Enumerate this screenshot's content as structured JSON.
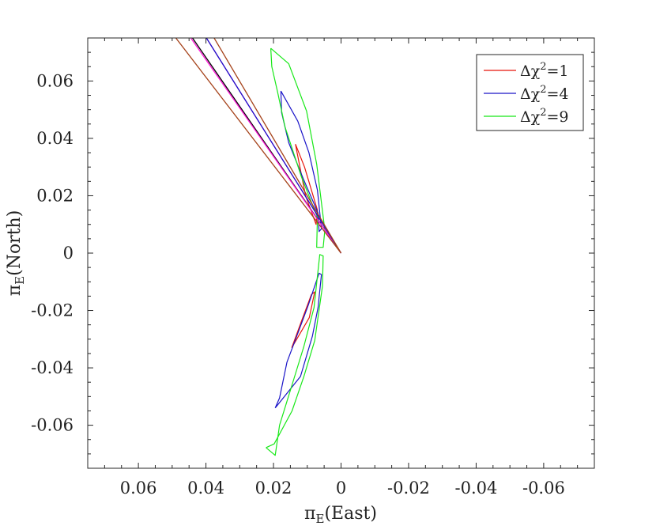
{
  "chart_data": {
    "type": "line",
    "xlabel": {
      "main": "π",
      "sub": "E",
      "paren": "(East)"
    },
    "ylabel": {
      "main": "π",
      "sub": "E",
      "paren": "(North)"
    },
    "xlim": [
      0.075,
      -0.075
    ],
    "ylim": [
      -0.075,
      0.075
    ],
    "x_ticks": [
      0.06,
      0.04,
      0.02,
      0,
      -0.02,
      -0.04,
      -0.06
    ],
    "x_tick_labels": [
      "0.06",
      "0.04",
      "0.02",
      "0",
      "-0.02",
      "-0.04",
      "-0.06"
    ],
    "y_ticks": [
      0.06,
      0.04,
      0.02,
      0,
      -0.02,
      -0.04,
      -0.06
    ],
    "y_tick_labels": [
      "0.06",
      "0.04",
      "0.02",
      "0",
      "-0.02",
      "-0.04",
      "-0.06"
    ],
    "x_minor_step": 0.005,
    "y_minor_step": 0.005,
    "grid": false,
    "legend_position": "top-right",
    "series": [
      {
        "name": "Δχ²=1",
        "legend": {
          "prefix": "Δχ",
          "sup": "2",
          "suffix": "=1"
        },
        "color": "#e8150b",
        "kind": "contour",
        "contours": [
          [
            [
              0.0135,
              0.038
            ],
            [
              0.0108,
              0.03
            ],
            [
              0.007,
              0.015
            ],
            [
              0.0074,
              0.01
            ],
            [
              0.0105,
              0.02
            ],
            [
              0.0135,
              0.038
            ]
          ],
          [
            [
              0.0146,
              -0.033
            ],
            [
              0.0118,
              -0.024
            ],
            [
              0.0088,
              -0.0145
            ],
            [
              0.0078,
              -0.0135
            ],
            [
              0.0094,
              -0.0225
            ],
            [
              0.0146,
              -0.033
            ]
          ]
        ]
      },
      {
        "name": "Δχ²=4",
        "legend": {
          "prefix": "Δχ",
          "sup": "2",
          "suffix": "=4"
        },
        "color": "#1a14c8",
        "kind": "contour",
        "contours": [
          [
            [
              0.0178,
              0.0565
            ],
            [
              0.0176,
              0.049
            ],
            [
              0.0155,
              0.0385
            ],
            [
              0.0112,
              0.026
            ],
            [
              0.0068,
              0.014
            ],
            [
              0.0065,
              0.0075
            ],
            [
              0.0058,
              0.0085
            ],
            [
              0.007,
              0.022
            ],
            [
              0.0095,
              0.035
            ],
            [
              0.0128,
              0.046
            ],
            [
              0.0178,
              0.0565
            ]
          ],
          [
            [
              0.0195,
              -0.054
            ],
            [
              0.0182,
              -0.0505
            ],
            [
              0.016,
              -0.038
            ],
            [
              0.0125,
              -0.027
            ],
            [
              0.0098,
              -0.0185
            ],
            [
              0.0065,
              -0.007
            ],
            [
              0.0058,
              -0.0075
            ],
            [
              0.0068,
              -0.019
            ],
            [
              0.0085,
              -0.029
            ],
            [
              0.012,
              -0.043
            ],
            [
              0.0195,
              -0.054
            ]
          ]
        ]
      },
      {
        "name": "Δχ²=9",
        "legend": {
          "prefix": "Δχ",
          "sup": "2",
          "suffix": "=9"
        },
        "color": "#18e818",
        "kind": "contour",
        "contours": [
          [
            [
              0.0208,
              0.0714
            ],
            [
              0.0205,
              0.065
            ],
            [
              0.0188,
              0.0562
            ],
            [
              0.0166,
              0.044
            ],
            [
              0.0117,
              0.0265
            ],
            [
              0.007,
              0.0125
            ],
            [
              0.0072,
              0.002
            ],
            [
              0.0053,
              0.002
            ],
            [
              0.0048,
              0.008
            ],
            [
              0.0072,
              0.031
            ],
            [
              0.0102,
              0.0495
            ],
            [
              0.0155,
              0.066
            ],
            [
              0.0208,
              0.0714
            ]
          ],
          [
            [
              0.0222,
              -0.0678
            ],
            [
              0.0195,
              -0.0705
            ],
            [
              0.0182,
              -0.06
            ],
            [
              0.0148,
              -0.047
            ],
            [
              0.011,
              -0.0325
            ],
            [
              0.008,
              -0.019
            ],
            [
              0.0063,
              -0.0005
            ],
            [
              0.0053,
              -0.001
            ],
            [
              0.0055,
              -0.0115
            ],
            [
              0.0078,
              -0.0305
            ],
            [
              0.011,
              -0.043
            ],
            [
              0.0145,
              -0.055
            ],
            [
              0.0198,
              -0.0665
            ],
            [
              0.0222,
              -0.0678
            ]
          ]
        ]
      },
      {
        "color": "#000000",
        "kind": "line",
        "points": [
          [
            0.0447,
            0.0762
          ],
          [
            0,
            0
          ]
        ]
      },
      {
        "color": "#ff1ad9",
        "kind": "line",
        "points": [
          [
            0.0452,
            0.0762
          ],
          [
            0,
            0
          ]
        ]
      },
      {
        "color": "#ff1ad9",
        "kind": "line",
        "points": [
          [
            0.0405,
            0.0762
          ],
          [
            0,
            0
          ]
        ]
      },
      {
        "color": "#1a14c8",
        "kind": "line",
        "points": [
          [
            0.0405,
            0.0762
          ],
          [
            0,
            0
          ]
        ]
      },
      {
        "color": "#a5421a",
        "kind": "line",
        "points": [
          [
            0.0497,
            0.0762
          ],
          [
            0,
            0
          ]
        ]
      },
      {
        "color": "#a5421a",
        "kind": "line",
        "points": [
          [
            0.0382,
            0.0762
          ],
          [
            0,
            0
          ]
        ]
      }
    ]
  }
}
